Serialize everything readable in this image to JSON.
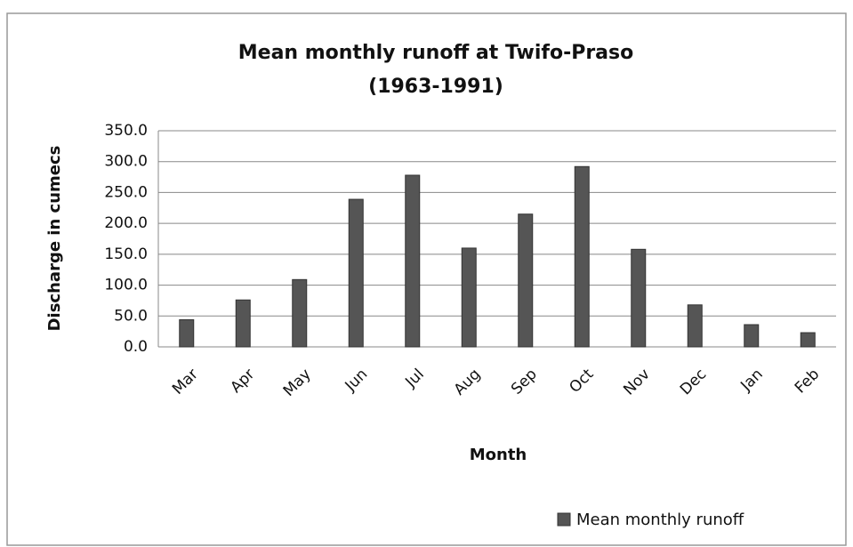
{
  "chart_data": {
    "type": "bar",
    "title": "Mean monthly runoff at Twifo-Praso",
    "subtitle": "(1963-1991)",
    "x_label": "Month",
    "y_label": "Discharge in cumecs",
    "categories": [
      "Mar",
      "Apr",
      "May",
      "Jun",
      "Jul",
      "Aug",
      "Sep",
      "Oct",
      "Nov",
      "Dec",
      "Jan",
      "Feb"
    ],
    "series": [
      {
        "name": "Mean monthly runoff",
        "color": "#555555",
        "values": [
          44,
          76,
          109,
          239,
          278,
          160,
          215,
          292,
          158,
          68,
          36,
          23
        ]
      }
    ],
    "ylim": [
      0,
      350
    ],
    "yticks": [
      {
        "value": 0,
        "label": "0.0"
      },
      {
        "value": 50,
        "label": "50.0"
      },
      {
        "value": 100,
        "label": "100.0"
      },
      {
        "value": 150,
        "label": "150.0"
      },
      {
        "value": 200,
        "label": "200.0"
      },
      {
        "value": 250,
        "label": "250.0"
      },
      {
        "value": 300,
        "label": "300.0"
      },
      {
        "value": 350,
        "label": "350.0"
      }
    ],
    "grid": true,
    "legend": "bottom-right"
  }
}
